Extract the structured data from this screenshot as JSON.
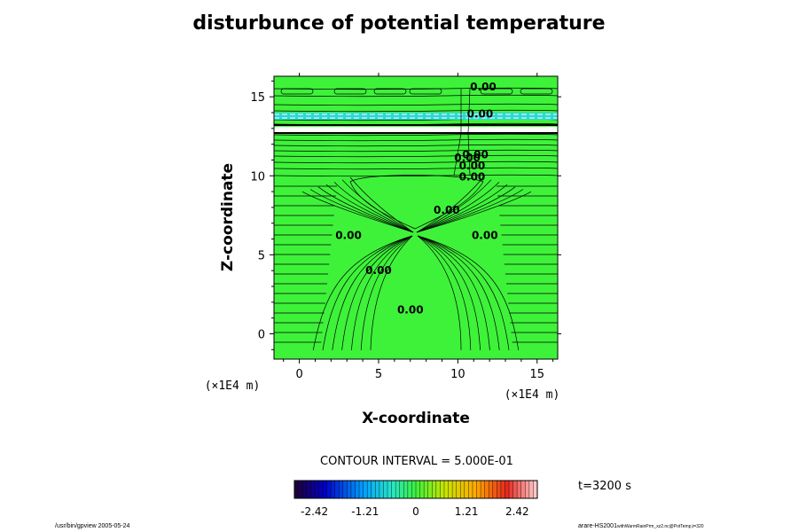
{
  "chart_data": {
    "type": "contour",
    "title": "disturbunce of potential temperature",
    "xlabel": "X-coordinate",
    "ylabel": "Z-coordinate",
    "x_unit": "(×1E4 m)",
    "y_unit": "(×1E4 m)",
    "xlim": [
      -1.6,
      16.3
    ],
    "ylim": [
      -1.6,
      16.3
    ],
    "x_ticks": [
      0,
      5,
      10,
      15
    ],
    "y_ticks": [
      0,
      5,
      10,
      15
    ],
    "contour_labels": [
      {
        "text": "0.00",
        "x": 11.6,
        "y": 15.4
      },
      {
        "text": "0.00",
        "x": 11.4,
        "y": 13.7
      },
      {
        "text": "0.00",
        "x": 11.1,
        "y": 11.1
      },
      {
        "text": "0.00",
        "x": 10.9,
        "y": 10.4
      },
      {
        "text": "0.00",
        "x": 10.9,
        "y": 9.7
      },
      {
        "text": "0.00",
        "x": 10.6,
        "y": 10.9
      },
      {
        "text": "0.00",
        "x": 9.3,
        "y": 7.6
      },
      {
        "text": "0.00",
        "x": 3.1,
        "y": 6.0
      },
      {
        "text": "0.00",
        "x": 11.7,
        "y": 6.0
      },
      {
        "text": "0.00",
        "x": 5.0,
        "y": 3.8
      },
      {
        "text": "0.00",
        "x": 7.0,
        "y": 1.3
      }
    ],
    "contour_interval_text": "CONTOUR INTERVAL = 5.000E-01",
    "colorbar": {
      "min": -2.9,
      "max": 2.9,
      "tick_values": [
        -2.42,
        -1.21,
        0,
        1.21,
        2.42
      ],
      "tick_labels": [
        "-2.42",
        "-1.21",
        "0",
        "1.21",
        "2.42"
      ]
    },
    "time_text": "t=3200 s",
    "grid": false,
    "legend": "bottom"
  },
  "footer": {
    "left": "/usr/bin/gpview 2005-05-24",
    "right_main": "arare-HS2001",
    "right_small": "withWarmRainPrm_xz2.nc@PotTemp,t=320"
  },
  "colors": {
    "background_field": "#3ef23a",
    "contour_line": "#000000",
    "cold_band": "#2dd6d6",
    "white_band": "#ffffff"
  }
}
